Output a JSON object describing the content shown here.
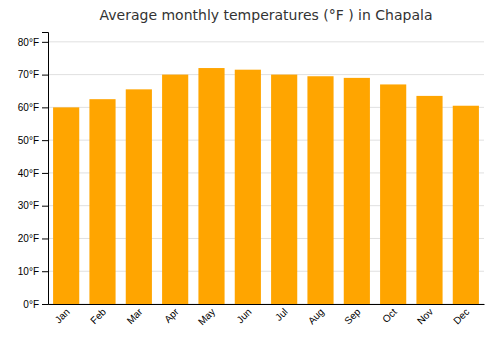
{
  "chart_data": {
    "type": "bar",
    "title": "Average monthly temperatures (°F ) in Chapala",
    "categories": [
      "Jan",
      "Feb",
      "Mar",
      "Apr",
      "May",
      "Jun",
      "Jul",
      "Aug",
      "Sep",
      "Oct",
      "Nov",
      "Dec"
    ],
    "values": [
      60,
      62.5,
      65.5,
      70,
      72,
      71.5,
      70,
      69.5,
      69,
      67,
      63.5,
      60.5
    ],
    "color": "#FFA500",
    "ylim": [
      0,
      83
    ],
    "yticks": [
      {
        "value": 0,
        "label": "0°F"
      },
      {
        "value": 10,
        "label": "10°F"
      },
      {
        "value": 20,
        "label": "20°F"
      },
      {
        "value": 30,
        "label": "30°F"
      },
      {
        "value": 40,
        "label": "40°F"
      },
      {
        "value": 50,
        "label": "50°F"
      },
      {
        "value": 60,
        "label": "60°F"
      },
      {
        "value": 70,
        "label": "70°F"
      },
      {
        "value": 80,
        "label": "80°F"
      }
    ],
    "grid": true
  }
}
